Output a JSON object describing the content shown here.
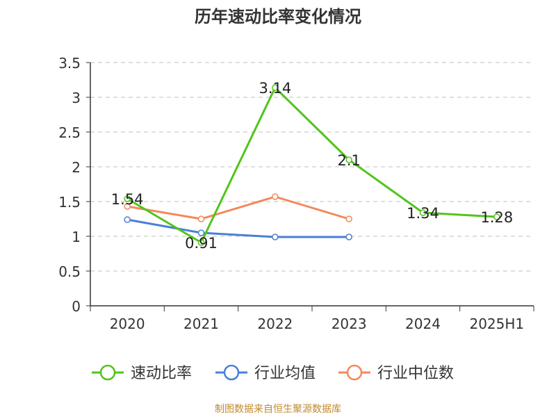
{
  "chart_data": {
    "type": "line",
    "title": "历年速动比率变化情况",
    "categories": [
      "2020",
      "2021",
      "2022",
      "2023",
      "2024",
      "2025H1"
    ],
    "ylim": [
      0,
      3.5
    ],
    "yticks": [
      "0",
      "0.5",
      "1",
      "1.5",
      "2",
      "2.5",
      "3",
      "3.5"
    ],
    "grid": true,
    "legend_position": "bottom",
    "series": [
      {
        "name": "速动比率",
        "color": "#52c41a",
        "values": [
          1.54,
          0.91,
          3.14,
          2.1,
          1.34,
          1.28
        ],
        "labels": [
          "1.54",
          "0.91",
          "3.14",
          "2.1",
          "1.34",
          "1.28"
        ]
      },
      {
        "name": "行业均值",
        "color": "#4a7fd6",
        "values": [
          1.24,
          1.05,
          0.99,
          0.99,
          null,
          null
        ]
      },
      {
        "name": "行业中位数",
        "color": "#f5875a",
        "values": [
          1.43,
          1.25,
          1.57,
          1.25,
          null,
          null
        ]
      }
    ]
  },
  "footer": "制图数据来自恒生聚源数据库"
}
